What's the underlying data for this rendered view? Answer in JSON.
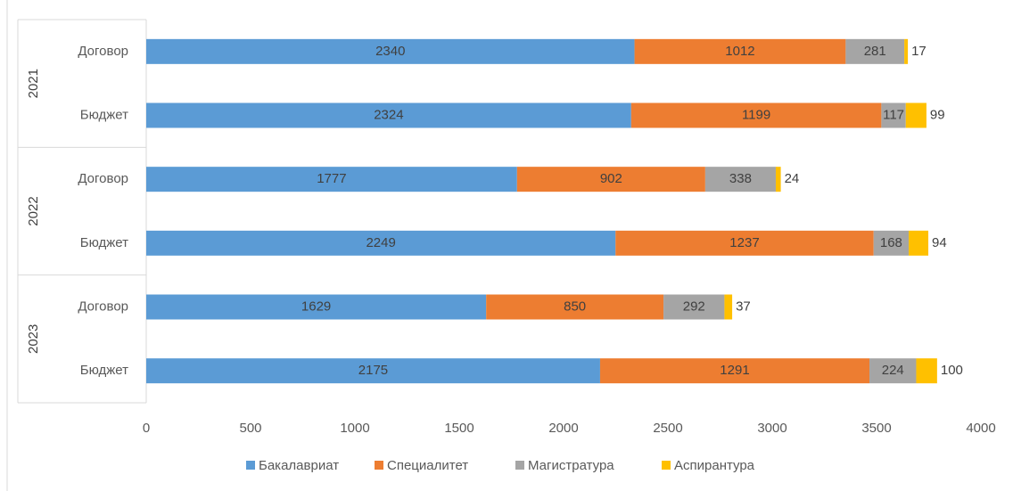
{
  "chart_data": {
    "type": "stacked_barh",
    "groups": [
      "2021",
      "2022",
      "2023"
    ],
    "categories": [
      "Договор",
      "Бюджет",
      "Договор",
      "Бюджет",
      "Договор",
      "Бюджет"
    ],
    "series": [
      {
        "name": "Бакалавриат",
        "color": "#5b9bd5",
        "values": [
          2340,
          2324,
          1777,
          2249,
          1629,
          2175
        ]
      },
      {
        "name": "Специалитет",
        "color": "#ed7d31",
        "values": [
          1012,
          1199,
          902,
          1237,
          850,
          1291
        ]
      },
      {
        "name": "Магистратура",
        "color": "#a5a5a5",
        "values": [
          281,
          117,
          338,
          168,
          292,
          224
        ]
      },
      {
        "name": "Аспирантура",
        "color": "#ffc000",
        "values": [
          17,
          99,
          24,
          94,
          37,
          100
        ]
      }
    ],
    "xlim": [
      0,
      4000
    ],
    "xticks": [
      0,
      500,
      1000,
      1500,
      2000,
      2500,
      3000,
      3500,
      4000
    ],
    "legend": "bottom"
  }
}
